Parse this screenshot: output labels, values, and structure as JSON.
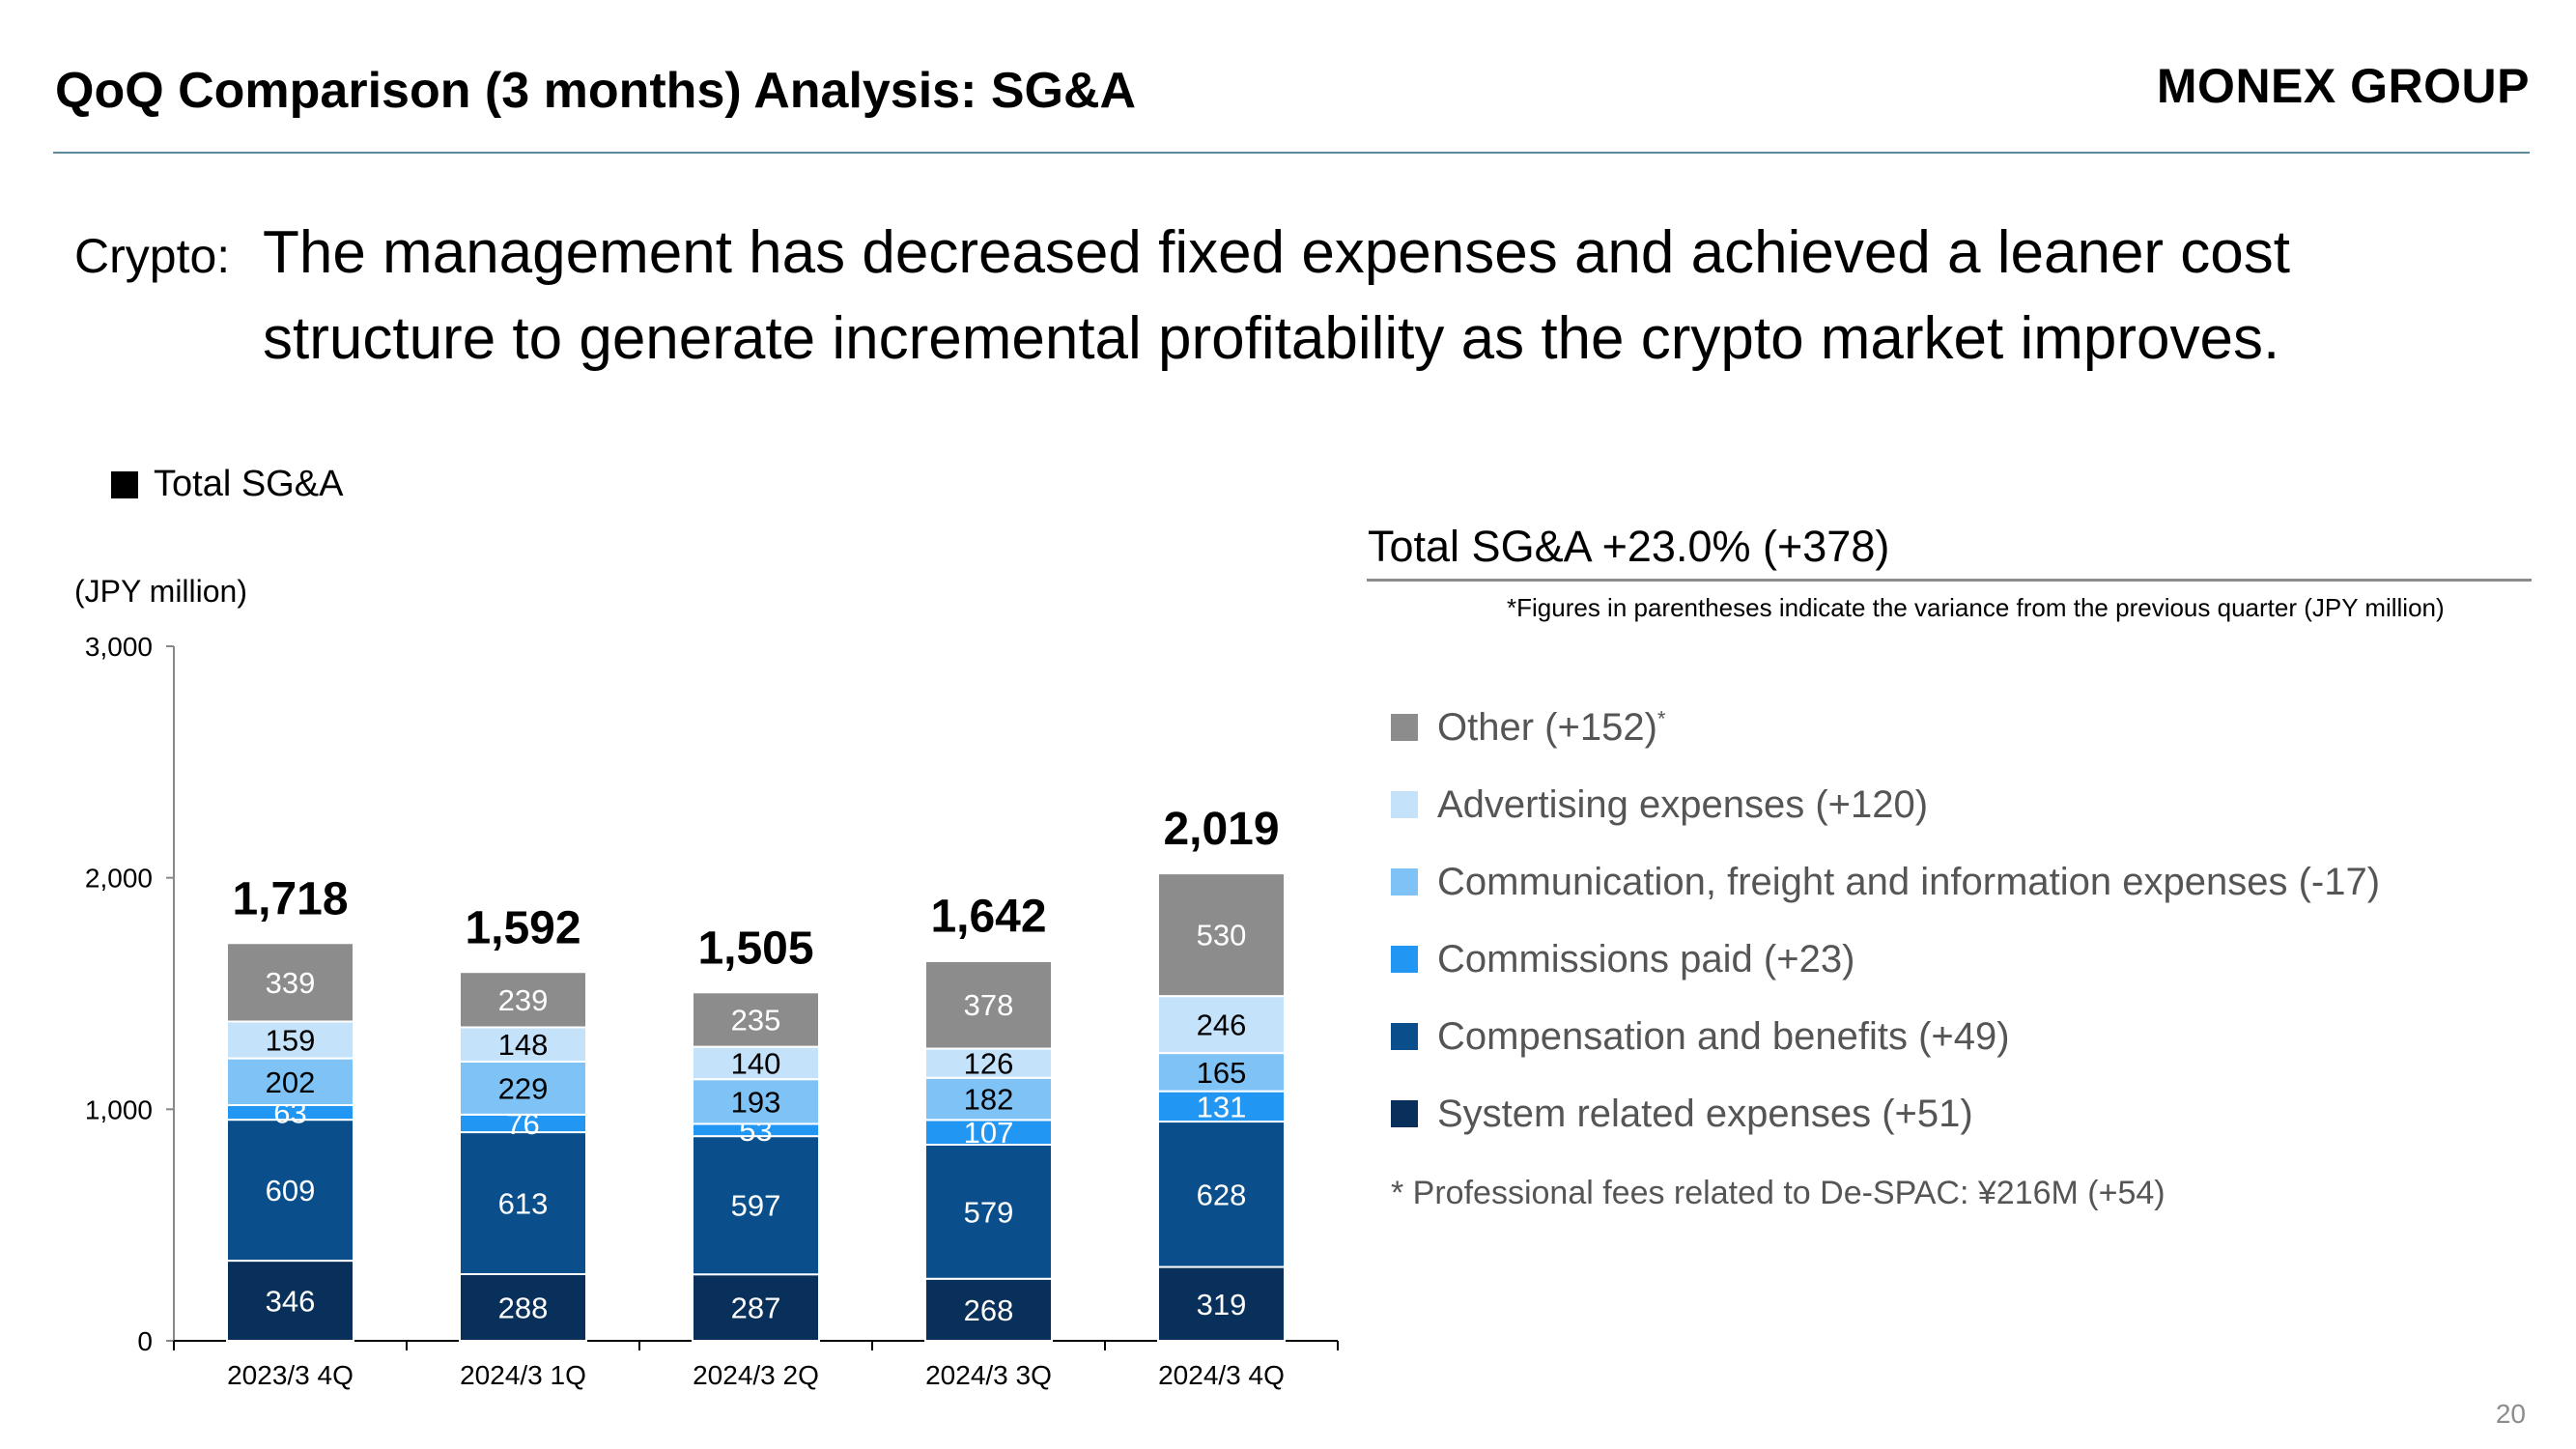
{
  "header": {
    "title": "QoQ Comparison (3 months) Analysis: SG&A",
    "brand": "MONEX GROUP"
  },
  "subtitle": {
    "prefix": "Crypto:",
    "line1": "The management has decreased fixed expenses and achieved a leaner cost",
    "line2": "structure to generate incremental profitability as the crypto market improves."
  },
  "legend_total": {
    "label": "Total SG&A",
    "color": "#000000"
  },
  "unit_label": "(JPY million)",
  "summary": {
    "title": "Total SG&A +23.0% (+378)",
    "note": "*Figures in parentheses indicate the variance from the previous quarter (JPY million)"
  },
  "right_legend": [
    {
      "label": "Other (+152)",
      "sup": "*",
      "color": "#8c8c8c"
    },
    {
      "label": "Advertising expenses (+120)",
      "sup": "",
      "color": "#c5e2fb"
    },
    {
      "label": "Communication, freight and information expenses (-17)",
      "sup": "",
      "color": "#7fc3f6"
    },
    {
      "label": "Commissions paid (+23)",
      "sup": "",
      "color": "#2196f3"
    },
    {
      "label": "Compensation and benefits (+49)",
      "sup": "",
      "color": "#0a4f8c"
    },
    {
      "label": "System related expenses (+51)",
      "sup": "",
      "color": "#08305a"
    }
  ],
  "footnote": "* Professional fees related to De-SPAC: ¥216M (+54)",
  "page_number": "20",
  "chart_data": {
    "type": "bar",
    "stacked": true,
    "categories": [
      "2023/3 4Q",
      "2024/3 1Q",
      "2024/3 2Q",
      "2024/3 3Q",
      "2024/3 4Q"
    ],
    "series": [
      {
        "name": "System related expenses",
        "color": "#08305a",
        "text_color": "#ffffff",
        "values": [
          346,
          288,
          287,
          268,
          319
        ]
      },
      {
        "name": "Compensation and benefits",
        "color": "#0a4f8c",
        "text_color": "#ffffff",
        "values": [
          609,
          613,
          597,
          579,
          628
        ]
      },
      {
        "name": "Commissions paid",
        "color": "#2196f3",
        "text_color": "#ffffff",
        "values": [
          63,
          76,
          53,
          107,
          131
        ]
      },
      {
        "name": "Communication, freight and information expenses",
        "color": "#7fc3f6",
        "text_color": "#000000",
        "values": [
          202,
          229,
          193,
          182,
          165
        ]
      },
      {
        "name": "Advertising expenses",
        "color": "#c5e2fb",
        "text_color": "#000000",
        "values": [
          159,
          148,
          140,
          126,
          246
        ]
      },
      {
        "name": "Other",
        "color": "#8c8c8c",
        "text_color": "#ffffff",
        "values": [
          339,
          239,
          235,
          378,
          530
        ]
      }
    ],
    "totals": [
      1718,
      1592,
      1505,
      1642,
      2019
    ],
    "total_labels": [
      "1,718",
      "1,592",
      "1,505",
      "1,642",
      "2,019"
    ],
    "ylim": [
      0,
      3000
    ],
    "yticks": [
      0,
      1000,
      2000,
      3000
    ],
    "ytick_labels": [
      "0",
      "1,000",
      "2,000",
      "3,000"
    ],
    "grid": false
  }
}
